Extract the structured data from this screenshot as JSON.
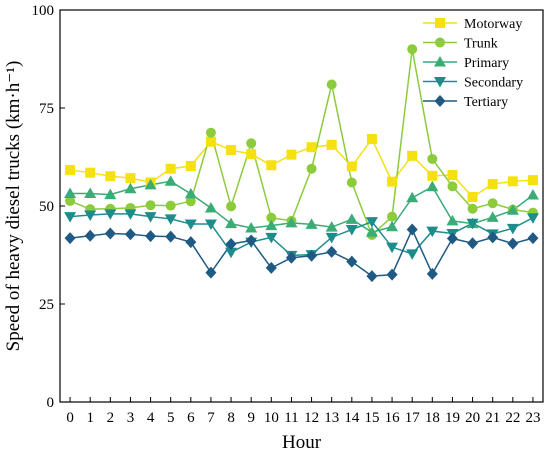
{
  "chart_data": {
    "type": "line",
    "xlabel": "Hour",
    "ylabel": "Speed of heavy diesel trucks (km·h⁻¹)",
    "xlim": [
      -0.5,
      23.5
    ],
    "ylim": [
      0,
      100
    ],
    "x": [
      0,
      1,
      2,
      3,
      4,
      5,
      6,
      7,
      8,
      9,
      10,
      11,
      12,
      13,
      14,
      15,
      16,
      17,
      18,
      19,
      20,
      21,
      22,
      23
    ],
    "x_tick_labels": [
      "0",
      "1",
      "2",
      "3",
      "4",
      "5",
      "6",
      "7",
      "8",
      "9",
      "10",
      "11",
      "12",
      "13",
      "14",
      "15",
      "16",
      "17",
      "18",
      "19",
      "20",
      "21",
      "22",
      "23"
    ],
    "y_ticks": [
      0,
      25,
      50,
      75,
      100
    ],
    "y_tick_labels": [
      "0",
      "25",
      "50",
      "75",
      "100"
    ],
    "grid": false,
    "legend_position": "top-right",
    "series": [
      {
        "name": "Motorway",
        "color": "#f5e010",
        "marker": "square",
        "values": [
          59.2,
          58.5,
          57.6,
          57.1,
          56.0,
          59.5,
          60.2,
          66.4,
          64.3,
          63.2,
          60.4,
          63.1,
          65.0,
          65.6,
          60.1,
          67.1,
          56.2,
          62.8,
          57.7,
          57.9,
          52.3,
          55.6,
          56.3,
          56.6
        ]
      },
      {
        "name": "Trunk",
        "color": "#8ccb3c",
        "marker": "circle",
        "values": [
          51.3,
          49.2,
          49.3,
          49.5,
          50.2,
          50.1,
          51.2,
          68.7,
          49.9,
          66.0,
          47.0,
          46.2,
          59.5,
          81.0,
          56.0,
          42.6,
          47.3,
          90.0,
          62.0,
          55.0,
          49.3,
          50.7,
          49.1,
          48.3
        ]
      },
      {
        "name": "Primary",
        "color": "#3aac76",
        "marker": "triangle-up",
        "values": [
          53.2,
          53.2,
          52.9,
          54.4,
          55.4,
          56.3,
          53.1,
          49.5,
          45.5,
          44.4,
          45.0,
          45.7,
          45.3,
          44.6,
          46.6,
          43.3,
          44.7,
          52.1,
          54.9,
          46.2,
          45.5,
          47.1,
          48.9,
          52.8
        ]
      },
      {
        "name": "Secondary",
        "color": "#1f8c8c",
        "marker": "triangle-down",
        "values": [
          47.3,
          47.7,
          48.0,
          48.0,
          47.3,
          46.7,
          45.4,
          45.4,
          38.2,
          40.8,
          42.0,
          37.4,
          37.6,
          42.0,
          44.0,
          46.0,
          39.5,
          37.8,
          43.6,
          43.0,
          45.6,
          42.9,
          44.3,
          47.0
        ]
      },
      {
        "name": "Tertiary",
        "color": "#1e5a84",
        "marker": "diamond",
        "values": [
          41.8,
          42.4,
          43.0,
          42.8,
          42.3,
          42.2,
          40.8,
          33.0,
          40.3,
          41.2,
          34.2,
          36.8,
          37.3,
          38.3,
          35.8,
          32.1,
          32.5,
          44.0,
          32.7,
          41.7,
          40.5,
          42.0,
          40.4,
          41.8
        ]
      }
    ]
  }
}
